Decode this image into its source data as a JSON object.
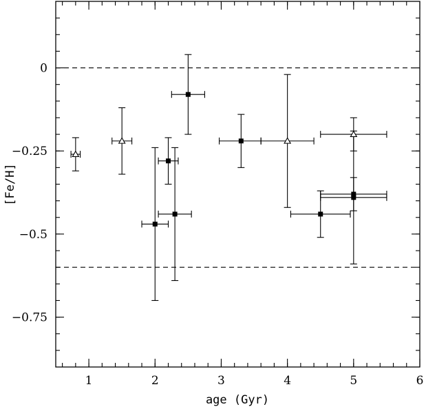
{
  "chart_data": {
    "type": "scatter",
    "title": "",
    "xlabel": "age (Gyr)",
    "ylabel": "[Fe/H]",
    "xlim": [
      0.5,
      6
    ],
    "ylim": [
      -0.9,
      0.2
    ],
    "xticks": [
      1,
      2,
      3,
      4,
      5,
      6
    ],
    "xtick_labels": [
      "1",
      "2",
      "3",
      "4",
      "5",
      "6"
    ],
    "yticks": [
      0,
      -0.25,
      -0.5,
      -0.75
    ],
    "ytick_labels": [
      "0",
      "−0.25",
      "−0.5",
      "−0.75"
    ],
    "grid": false,
    "reference_lines": [
      {
        "y": 0,
        "style": "dashed"
      },
      {
        "y": -0.6,
        "style": "dashed"
      }
    ],
    "series": [
      {
        "marker": "filled-square",
        "points": [
          {
            "x": 2.5,
            "y": -0.08,
            "xerr": [
              0.25,
              0.25
            ],
            "yerr": [
              0.12,
              0.12
            ]
          },
          {
            "x": 3.3,
            "y": -0.22,
            "xerr": [
              0.33,
              0.3
            ],
            "yerr": [
              0.08,
              0.08
            ]
          },
          {
            "x": 2.2,
            "y": -0.28,
            "xerr": [
              0.15,
              0.15
            ],
            "yerr": [
              0.07,
              0.07
            ]
          },
          {
            "x": 2.0,
            "y": -0.47,
            "xerr": [
              0.2,
              0.2
            ],
            "yerr": [
              0.23,
              0.23
            ]
          },
          {
            "x": 2.3,
            "y": -0.44,
            "xerr": [
              0.25,
              0.25
            ],
            "yerr": [
              0.2,
              0.2
            ]
          },
          {
            "x": 4.5,
            "y": -0.44,
            "xerr": [
              0.45,
              0.45
            ],
            "yerr": [
              0.07,
              0.07
            ]
          },
          {
            "x": 5.0,
            "y": -0.38,
            "xerr": [
              0.5,
              0.5
            ],
            "yerr": [
              0.05,
              0.05
            ]
          },
          {
            "x": 5.0,
            "y": -0.39,
            "xerr": [
              0.5,
              0.5
            ],
            "yerr": [
              0.2,
              0.2
            ]
          }
        ]
      },
      {
        "marker": "open-triangle",
        "points": [
          {
            "x": 0.8,
            "y": -0.26,
            "xerr": [
              0.07,
              0.07
            ],
            "yerr": [
              0.05,
              0.05
            ]
          },
          {
            "x": 1.5,
            "y": -0.22,
            "xerr": [
              0.15,
              0.15
            ],
            "yerr": [
              0.1,
              0.1
            ]
          },
          {
            "x": 4.0,
            "y": -0.22,
            "xerr": [
              0.4,
              0.4
            ],
            "yerr": [
              0.2,
              0.2
            ]
          },
          {
            "x": 5.0,
            "y": -0.2,
            "xerr": [
              0.5,
              0.5
            ],
            "yerr": [
              0.05,
              0.05
            ]
          }
        ]
      }
    ]
  }
}
